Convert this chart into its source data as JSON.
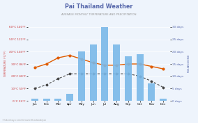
{
  "title": "Pai Thailand Weather",
  "subtitle": "AVERAGE MONTHLY TEMPERATURE AND PRECIPITATION",
  "months": [
    "Jan",
    "Feb",
    "Mar",
    "Apr",
    "May",
    "Jun",
    "Jul",
    "Aug",
    "Sep",
    "Oct",
    "Nov",
    "Dec"
  ],
  "day_temp": [
    27,
    30,
    35,
    37,
    34,
    31,
    29,
    29,
    30,
    30,
    28,
    26
  ],
  "night_temp": [
    10,
    13,
    18,
    22,
    22,
    22,
    22,
    22,
    22,
    20,
    16,
    11
  ],
  "rain_days": [
    1,
    1,
    1,
    3,
    20,
    23,
    30,
    23,
    18,
    19,
    7,
    1
  ],
  "snow_days": [
    0,
    0,
    0,
    0,
    0,
    0,
    0,
    0,
    0,
    0,
    0,
    0
  ],
  "temp_left_labels": [
    "0°C 32°F",
    "10°C 50°F",
    "20°C 68°F",
    "30°C 86°F",
    "40°C 104°F",
    "50°C 122°F",
    "60°C 140°F"
  ],
  "temp_left_vals": [
    0,
    10,
    20,
    30,
    40,
    50,
    60
  ],
  "rain_right_labels": [
    "0 days",
    "5 days",
    "10 days",
    "15 days",
    "20 days",
    "25 days",
    "30 days"
  ],
  "rain_right_vals": [
    0,
    5,
    10,
    15,
    20,
    25,
    30
  ],
  "bar_color": "#7ab8e8",
  "day_color": "#e05c00",
  "night_color": "#444444",
  "snow_color": "#f4a460",
  "bg_color": "#eef4fc",
  "title_color": "#5566aa",
  "subtitle_color": "#999999",
  "left_label_color": "#cc3333",
  "right_label_color": "#5566aa",
  "website": "©hikerbay.com/climate/thailand/pai"
}
